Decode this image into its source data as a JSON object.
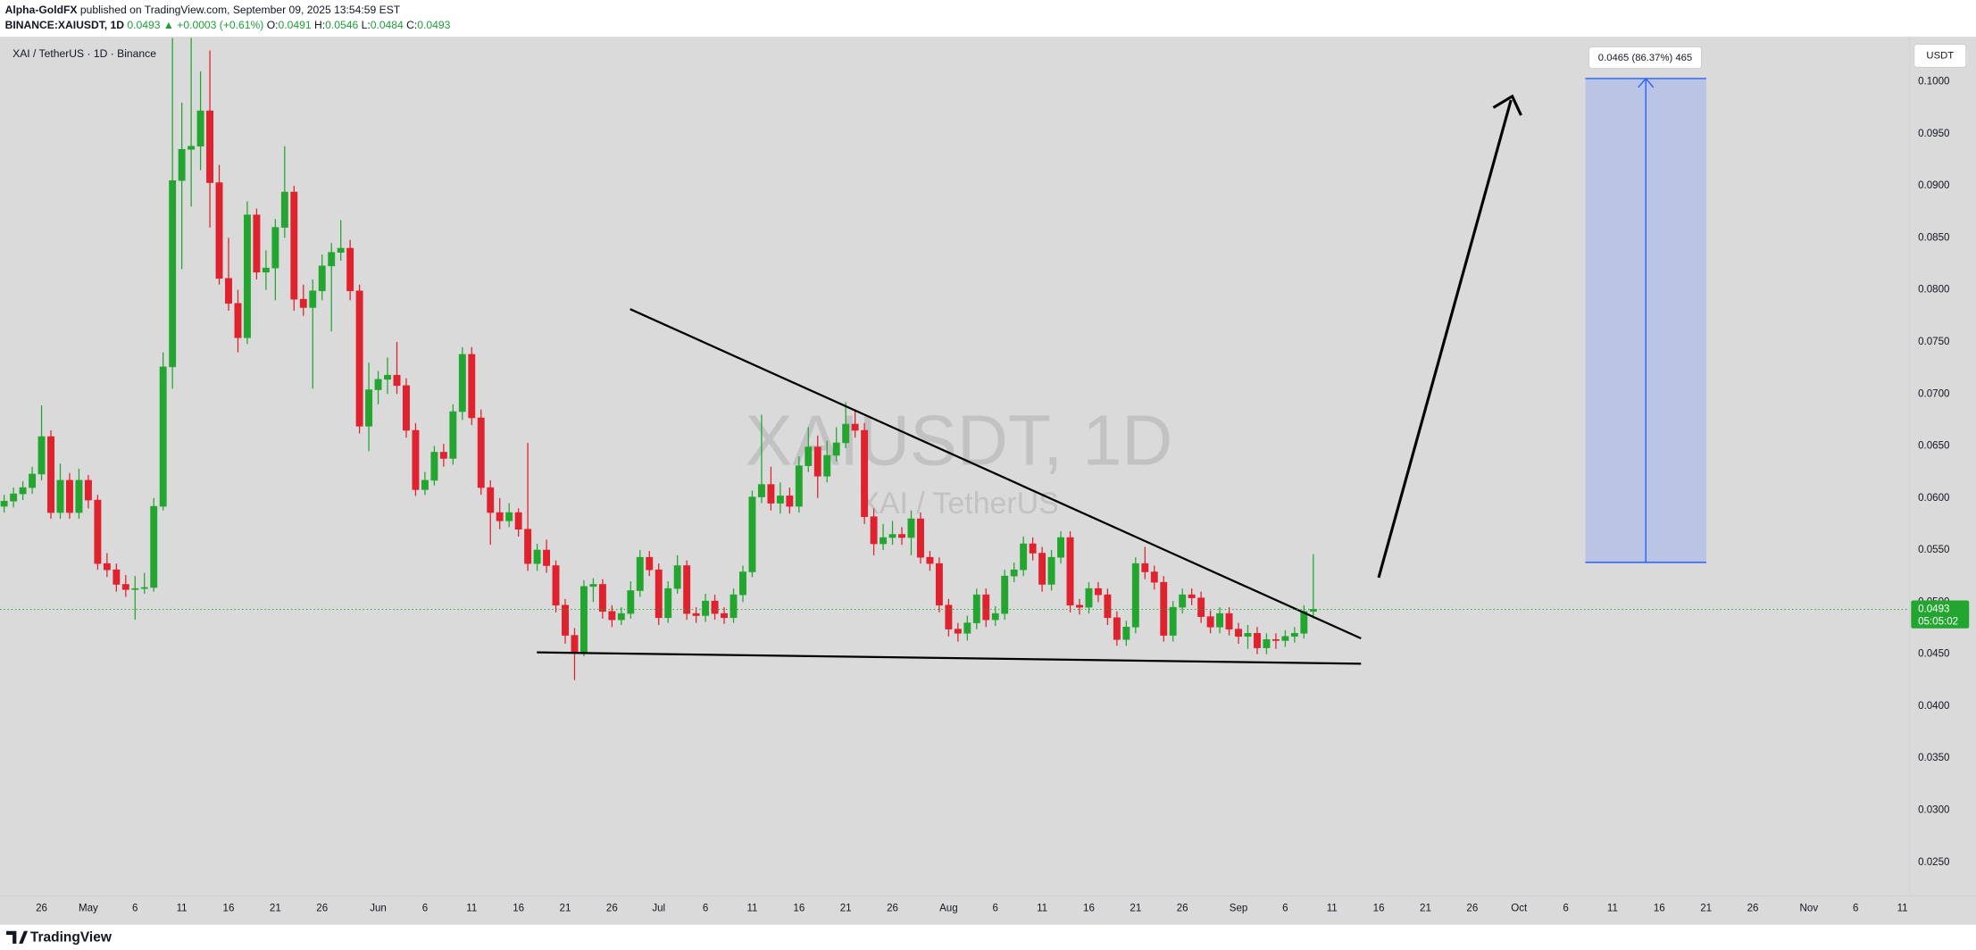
{
  "header": {
    "author": "Alpha-GoldFX",
    "published": " published on TradingView.com, September 09, 2025 13:54:59 EST",
    "symbol": "BINANCE:XAIUSDT, 1D",
    "change": "▲ +0.0003 (+0.61%)",
    "ohlc_labels": [
      "O:",
      "H:",
      "L:",
      "C:"
    ]
  },
  "legend": "XAI / TetherUS · 1D · Binance",
  "watermark": {
    "title": "XAIUSDT, 1D",
    "subtitle": "XAI / TetherUS"
  },
  "measure_label": "0.0465 (86.37%) 465",
  "footer": "TradingView",
  "chart_data": {
    "type": "candlestick",
    "unit": "USDT",
    "countdown": "05:05:02",
    "up_color": "#22a630",
    "down_color": "#e0212e",
    "price_line_color": "#22a630",
    "ylim": [
      0.0218,
      0.1042
    ],
    "yticks": [
      {
        "value": 0.025,
        "label": "0.0250"
      },
      {
        "value": 0.03,
        "label": "0.0300"
      },
      {
        "value": 0.035,
        "label": "0.0350"
      },
      {
        "value": 0.04,
        "label": "0.0400"
      },
      {
        "value": 0.045,
        "label": "0.0450"
      },
      {
        "value": 0.05,
        "label": "0.0500"
      },
      {
        "value": 0.055,
        "label": "0.0550"
      },
      {
        "value": 0.06,
        "label": "0.0600"
      },
      {
        "value": 0.065,
        "label": "0.0650"
      },
      {
        "value": 0.07,
        "label": "0.0700"
      },
      {
        "value": 0.075,
        "label": "0.0750"
      },
      {
        "value": 0.08,
        "label": "0.0800"
      },
      {
        "value": 0.085,
        "label": "0.0850"
      },
      {
        "value": 0.09,
        "label": "0.0900"
      },
      {
        "value": 0.095,
        "label": "0.0950"
      },
      {
        "value": 0.1,
        "label": "0.1000"
      }
    ],
    "xlim": [
      "04-22",
      "11-11"
    ],
    "xticks": [
      {
        "value": "04-26",
        "label": "26"
      },
      {
        "value": "05-01",
        "label": "May"
      },
      {
        "value": "05-06",
        "label": "6"
      },
      {
        "value": "05-11",
        "label": "11"
      },
      {
        "value": "05-16",
        "label": "16"
      },
      {
        "value": "05-21",
        "label": "21"
      },
      {
        "value": "05-26",
        "label": "26"
      },
      {
        "value": "06-01",
        "label": "Jun"
      },
      {
        "value": "06-06",
        "label": "6"
      },
      {
        "value": "06-11",
        "label": "11"
      },
      {
        "value": "06-16",
        "label": "16"
      },
      {
        "value": "06-21",
        "label": "21"
      },
      {
        "value": "06-26",
        "label": "26"
      },
      {
        "value": "07-01",
        "label": "Jul"
      },
      {
        "value": "07-06",
        "label": "6"
      },
      {
        "value": "07-11",
        "label": "11"
      },
      {
        "value": "07-16",
        "label": "16"
      },
      {
        "value": "07-21",
        "label": "21"
      },
      {
        "value": "07-26",
        "label": "26"
      },
      {
        "value": "08-01",
        "label": "Aug"
      },
      {
        "value": "08-06",
        "label": "6"
      },
      {
        "value": "08-11",
        "label": "11"
      },
      {
        "value": "08-16",
        "label": "16"
      },
      {
        "value": "08-21",
        "label": "21"
      },
      {
        "value": "08-26",
        "label": "26"
      },
      {
        "value": "09-01",
        "label": "Sep"
      },
      {
        "value": "09-06",
        "label": "6"
      },
      {
        "value": "09-11",
        "label": "11"
      },
      {
        "value": "09-16",
        "label": "16"
      },
      {
        "value": "09-21",
        "label": "21"
      },
      {
        "value": "09-26",
        "label": "26"
      },
      {
        "value": "10-01",
        "label": "Oct"
      },
      {
        "value": "10-06",
        "label": "6"
      },
      {
        "value": "10-11",
        "label": "11"
      },
      {
        "value": "10-16",
        "label": "16"
      },
      {
        "value": "10-21",
        "label": "21"
      },
      {
        "value": "10-26",
        "label": "26"
      },
      {
        "value": "11-01",
        "label": "Nov"
      },
      {
        "value": "11-06",
        "label": "6"
      },
      {
        "value": "11-11",
        "label": "11"
      }
    ],
    "x": [
      "04-22",
      "04-23",
      "04-24",
      "04-25",
      "04-26",
      "04-27",
      "04-28",
      "04-29",
      "04-30",
      "05-01",
      "05-02",
      "05-03",
      "05-04",
      "05-05",
      "05-06",
      "05-07",
      "05-08",
      "05-09",
      "05-10",
      "05-11",
      "05-12",
      "05-13",
      "05-14",
      "05-15",
      "05-16",
      "05-17",
      "05-18",
      "05-19",
      "05-20",
      "05-21",
      "05-22",
      "05-23",
      "05-24",
      "05-25",
      "05-26",
      "05-27",
      "05-28",
      "05-29",
      "05-30",
      "05-31",
      "06-01",
      "06-02",
      "06-03",
      "06-04",
      "06-05",
      "06-06",
      "06-07",
      "06-08",
      "06-09",
      "06-10",
      "06-11",
      "06-12",
      "06-13",
      "06-14",
      "06-15",
      "06-16",
      "06-17",
      "06-18",
      "06-19",
      "06-20",
      "06-21",
      "06-22",
      "06-23",
      "06-24",
      "06-25",
      "06-26",
      "06-27",
      "06-28",
      "06-29",
      "06-30",
      "07-01",
      "07-02",
      "07-03",
      "07-04",
      "07-05",
      "07-06",
      "07-07",
      "07-08",
      "07-09",
      "07-10",
      "07-11",
      "07-12",
      "07-13",
      "07-14",
      "07-15",
      "07-16",
      "07-17",
      "07-18",
      "07-19",
      "07-20",
      "07-21",
      "07-22",
      "07-23",
      "07-24",
      "07-25",
      "07-26",
      "07-27",
      "07-28",
      "07-29",
      "07-30",
      "07-31",
      "08-01",
      "08-02",
      "08-03",
      "08-04",
      "08-05",
      "08-06",
      "08-07",
      "08-08",
      "08-09",
      "08-10",
      "08-11",
      "08-12",
      "08-13",
      "08-14",
      "08-15",
      "08-16",
      "08-17",
      "08-18",
      "08-19",
      "08-20",
      "08-21",
      "08-22",
      "08-23",
      "08-24",
      "08-25",
      "08-26",
      "08-27",
      "08-28",
      "08-29",
      "08-30",
      "08-31",
      "09-01",
      "09-02",
      "09-03",
      "09-04",
      "09-05",
      "09-06",
      "09-07",
      "09-08",
      "09-09"
    ],
    "open": [
      0.0592,
      0.0597,
      0.0604,
      0.061,
      0.0623,
      0.0659,
      0.0586,
      0.0617,
      0.0586,
      0.0617,
      0.0598,
      0.0537,
      0.0531,
      0.0517,
      0.0512,
      0.0513,
      0.0514,
      0.0592,
      0.0726,
      0.0905,
      0.0935,
      0.0938,
      0.0972,
      0.0903,
      0.0811,
      0.0787,
      0.0754,
      0.0872,
      0.0817,
      0.0821,
      0.086,
      0.0894,
      0.0791,
      0.0783,
      0.0799,
      0.0823,
      0.0836,
      0.084,
      0.0799,
      0.0669,
      0.0704,
      0.0714,
      0.0718,
      0.0708,
      0.0665,
      0.0608,
      0.0617,
      0.0644,
      0.0638,
      0.0683,
      0.0738,
      0.0677,
      0.061,
      0.0586,
      0.0578,
      0.0586,
      0.057,
      0.0537,
      0.055,
      0.0535,
      0.0497,
      0.0468,
      0.0452,
      0.0515,
      0.0517,
      0.0491,
      0.0483,
      0.0489,
      0.0511,
      0.0543,
      0.0531,
      0.0485,
      0.0513,
      0.0535,
      0.0489,
      0.0487,
      0.0501,
      0.0489,
      0.0485,
      0.0507,
      0.0529,
      0.0601,
      0.0613,
      0.0595,
      0.0602,
      0.0592,
      0.0631,
      0.0649,
      0.0621,
      0.0641,
      0.0653,
      0.0671,
      0.0665,
      0.0582,
      0.0556,
      0.0562,
      0.0565,
      0.0562,
      0.058,
      0.0543,
      0.0537,
      0.0497,
      0.0474,
      0.047,
      0.048,
      0.0507,
      0.0483,
      0.0489,
      0.0525,
      0.0531,
      0.0556,
      0.0547,
      0.0517,
      0.0543,
      0.0562,
      0.0497,
      0.0495,
      0.0513,
      0.0507,
      0.0485,
      0.0464,
      0.0476,
      0.0537,
      0.0529,
      0.0519,
      0.0468,
      0.0495,
      0.0507,
      0.0504,
      0.0486,
      0.0476,
      0.0489,
      0.0474,
      0.0467,
      0.047,
      0.0456,
      0.0464,
      0.0463,
      0.0467,
      0.047,
      0.0491
    ],
    "high": [
      0.0603,
      0.061,
      0.0616,
      0.063,
      0.0689,
      0.0665,
      0.0633,
      0.0624,
      0.0628,
      0.0622,
      0.0603,
      0.0547,
      0.0537,
      0.0526,
      0.0525,
      0.0528,
      0.06,
      0.074,
      0.1042,
      0.098,
      0.1042,
      0.101,
      0.103,
      0.092,
      0.085,
      0.08,
      0.0885,
      0.0878,
      0.0838,
      0.0868,
      0.0938,
      0.09,
      0.0805,
      0.081,
      0.0834,
      0.0845,
      0.0867,
      0.0848,
      0.0805,
      0.073,
      0.0722,
      0.0735,
      0.075,
      0.0715,
      0.0672,
      0.0625,
      0.065,
      0.0652,
      0.069,
      0.0745,
      0.0745,
      0.0685,
      0.0617,
      0.06,
      0.0595,
      0.059,
      0.0653,
      0.0556,
      0.056,
      0.054,
      0.0503,
      0.0475,
      0.0521,
      0.0523,
      0.0522,
      0.0497,
      0.0495,
      0.052,
      0.055,
      0.0549,
      0.0537,
      0.052,
      0.0545,
      0.054,
      0.0495,
      0.0508,
      0.0507,
      0.0495,
      0.0513,
      0.0535,
      0.0607,
      0.068,
      0.063,
      0.0615,
      0.061,
      0.064,
      0.0668,
      0.066,
      0.0655,
      0.0668,
      0.0692,
      0.0685,
      0.0672,
      0.059,
      0.0575,
      0.0578,
      0.0572,
      0.0588,
      0.0586,
      0.0549,
      0.0543,
      0.0503,
      0.048,
      0.0487,
      0.0513,
      0.0513,
      0.0496,
      0.0531,
      0.0538,
      0.0563,
      0.0562,
      0.0553,
      0.055,
      0.0568,
      0.0568,
      0.0503,
      0.0519,
      0.0519,
      0.0513,
      0.0491,
      0.0482,
      0.0543,
      0.0553,
      0.0535,
      0.0525,
      0.0501,
      0.0513,
      0.0513,
      0.051,
      0.0492,
      0.0495,
      0.0495,
      0.048,
      0.0478,
      0.0476,
      0.047,
      0.047,
      0.0473,
      0.0476,
      0.0497,
      0.0546
    ],
    "low": [
      0.0586,
      0.0591,
      0.0598,
      0.0604,
      0.0617,
      0.058,
      0.058,
      0.058,
      0.058,
      0.059,
      0.0531,
      0.0524,
      0.051,
      0.0505,
      0.0483,
      0.0508,
      0.051,
      0.0588,
      0.0705,
      0.082,
      0.088,
      0.0915,
      0.086,
      0.0805,
      0.078,
      0.074,
      0.0748,
      0.081,
      0.08,
      0.079,
      0.085,
      0.078,
      0.0775,
      0.0705,
      0.079,
      0.076,
      0.0828,
      0.079,
      0.0662,
      0.0645,
      0.069,
      0.07,
      0.07,
      0.0658,
      0.0602,
      0.0603,
      0.0612,
      0.063,
      0.0632,
      0.0675,
      0.067,
      0.0603,
      0.0555,
      0.057,
      0.0572,
      0.0563,
      0.053,
      0.053,
      0.0528,
      0.049,
      0.046,
      0.0425,
      0.0448,
      0.05,
      0.0484,
      0.0476,
      0.0478,
      0.0484,
      0.0505,
      0.0525,
      0.0478,
      0.048,
      0.0508,
      0.0483,
      0.048,
      0.0481,
      0.0483,
      0.0479,
      0.048,
      0.05,
      0.0524,
      0.0595,
      0.0588,
      0.0585,
      0.0585,
      0.0586,
      0.0625,
      0.06,
      0.0615,
      0.0635,
      0.0648,
      0.0658,
      0.0575,
      0.0545,
      0.055,
      0.0555,
      0.0555,
      0.0545,
      0.0537,
      0.053,
      0.049,
      0.0467,
      0.0462,
      0.0463,
      0.0474,
      0.0476,
      0.0477,
      0.0483,
      0.0519,
      0.0525,
      0.054,
      0.051,
      0.0511,
      0.0537,
      0.049,
      0.0488,
      0.0489,
      0.05,
      0.0478,
      0.0458,
      0.0458,
      0.047,
      0.0522,
      0.0512,
      0.0462,
      0.0462,
      0.0489,
      0.0497,
      0.048,
      0.047,
      0.047,
      0.0468,
      0.046,
      0.0455,
      0.045,
      0.045,
      0.0455,
      0.0457,
      0.0461,
      0.0465,
      0.0484
    ],
    "close": [
      0.0597,
      0.0604,
      0.061,
      0.0623,
      0.0659,
      0.0586,
      0.0617,
      0.0586,
      0.0617,
      0.0598,
      0.0537,
      0.0531,
      0.0517,
      0.0512,
      0.0513,
      0.0514,
      0.0592,
      0.0726,
      0.0905,
      0.0935,
      0.0938,
      0.0972,
      0.0903,
      0.0811,
      0.0787,
      0.0754,
      0.0872,
      0.0817,
      0.0821,
      0.086,
      0.0894,
      0.0791,
      0.0783,
      0.0799,
      0.0823,
      0.0836,
      0.084,
      0.0799,
      0.0669,
      0.0704,
      0.0714,
      0.0718,
      0.0708,
      0.0665,
      0.0608,
      0.0617,
      0.0644,
      0.0638,
      0.0683,
      0.0738,
      0.0677,
      0.061,
      0.0586,
      0.0578,
      0.0586,
      0.057,
      0.0537,
      0.055,
      0.0535,
      0.0497,
      0.0468,
      0.0452,
      0.0515,
      0.0517,
      0.0491,
      0.0483,
      0.0489,
      0.0511,
      0.0543,
      0.0531,
      0.0485,
      0.0513,
      0.0535,
      0.0489,
      0.0487,
      0.0501,
      0.0489,
      0.0485,
      0.0507,
      0.0529,
      0.0601,
      0.0613,
      0.0595,
      0.0602,
      0.0592,
      0.0631,
      0.0649,
      0.0621,
      0.0641,
      0.0653,
      0.0671,
      0.0665,
      0.0582,
      0.0556,
      0.0562,
      0.0565,
      0.0562,
      0.058,
      0.0543,
      0.0537,
      0.0497,
      0.0474,
      0.047,
      0.048,
      0.0507,
      0.0483,
      0.0489,
      0.0525,
      0.0531,
      0.0556,
      0.0547,
      0.0517,
      0.0543,
      0.0562,
      0.0497,
      0.0495,
      0.0513,
      0.0507,
      0.0485,
      0.0464,
      0.0476,
      0.0537,
      0.0529,
      0.0519,
      0.0468,
      0.0495,
      0.0507,
      0.0504,
      0.0486,
      0.0476,
      0.0489,
      0.0474,
      0.0467,
      0.047,
      0.0456,
      0.0464,
      0.0463,
      0.0467,
      0.047,
      0.0491,
      0.0493
    ]
  }
}
